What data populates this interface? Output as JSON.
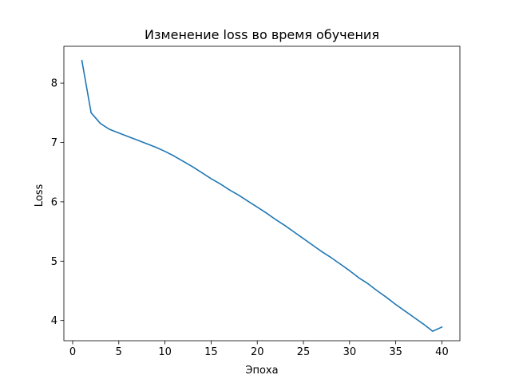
{
  "chart_data": {
    "type": "line",
    "title": "Изменение loss во время обучения",
    "xlabel": "Эпоха",
    "ylabel": "Loss",
    "xlim": [
      -0.95,
      41.95
    ],
    "ylim": [
      3.66,
      8.62
    ],
    "xticks": [
      0,
      5,
      10,
      15,
      20,
      25,
      30,
      35,
      40
    ],
    "yticks": [
      4,
      5,
      6,
      7,
      8
    ],
    "grid": false,
    "legend": "none",
    "line_color": "#1f77b4",
    "series": [
      {
        "x": [
          1,
          2,
          3,
          4,
          5,
          6,
          7,
          8,
          9,
          10,
          11,
          12,
          13,
          14,
          15,
          16,
          17,
          18,
          19,
          20,
          21,
          22,
          23,
          24,
          25,
          26,
          27,
          28,
          29,
          30,
          31,
          32,
          33,
          34,
          35,
          36,
          37,
          38,
          39,
          40
        ],
        "values": [
          8.38,
          7.5,
          7.32,
          7.22,
          7.16,
          7.1,
          7.04,
          6.98,
          6.92,
          6.85,
          6.77,
          6.68,
          6.59,
          6.49,
          6.39,
          6.3,
          6.2,
          6.11,
          6.01,
          5.91,
          5.81,
          5.7,
          5.6,
          5.49,
          5.38,
          5.27,
          5.16,
          5.06,
          4.95,
          4.84,
          4.72,
          4.62,
          4.5,
          4.39,
          4.27,
          4.16,
          4.05,
          3.94,
          3.82,
          3.89
        ]
      }
    ]
  }
}
